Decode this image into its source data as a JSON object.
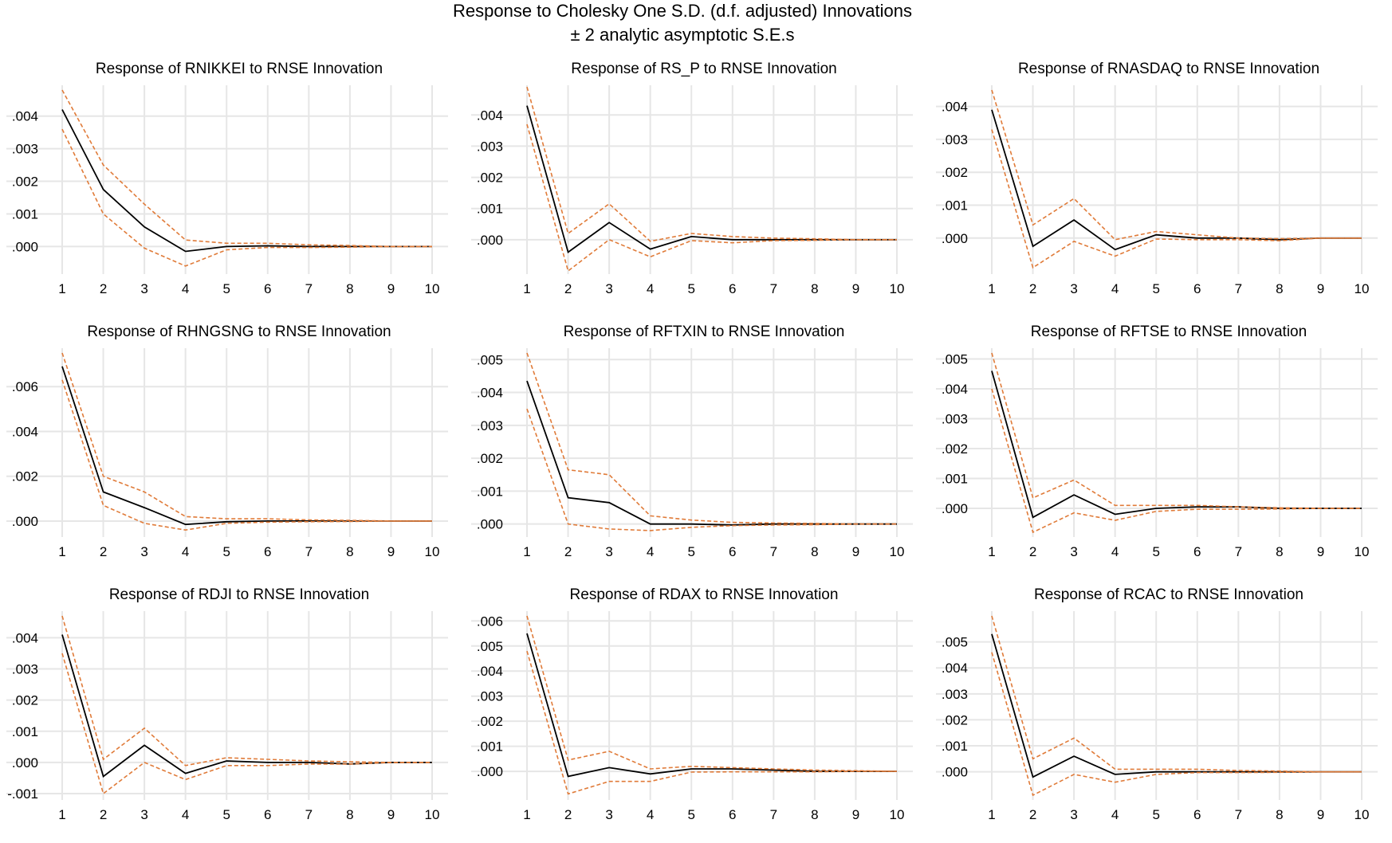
{
  "figure": {
    "title": "Response to Cholesky One S.D. (d.f. adjusted) Innovations",
    "subtitle": "± 2 analytic asymptotic S.E.s"
  },
  "colors": {
    "response": "#000000",
    "bands": "#E07B39",
    "grid": "#e6e6e6"
  },
  "chart_data": [
    {
      "type": "line",
      "title": "Response of RNIKKEI to RNSE Innovation",
      "x": [
        1,
        2,
        3,
        4,
        5,
        6,
        7,
        8,
        9,
        10
      ],
      "xticks": [
        "1",
        "2",
        "3",
        "4",
        "5",
        "6",
        "7",
        "8",
        "9",
        "10"
      ],
      "ylim": [
        -0.0007,
        0.0048
      ],
      "yticks": [
        0.0,
        0.001,
        0.002,
        0.003,
        0.004
      ],
      "ytick_labels": [
        ".000",
        ".001",
        ".002",
        ".003",
        ".004"
      ],
      "grid": true,
      "series": [
        {
          "role": "response",
          "values": [
            0.0042,
            0.00175,
            0.0006,
            -0.00015,
            0.0,
            2e-05,
            0.0,
            0.0,
            0.0,
            0.0
          ]
        },
        {
          "role": "upper",
          "values": [
            0.0048,
            0.0025,
            0.0013,
            0.0002,
            0.0001,
            0.0001,
            5e-05,
            3e-05,
            0.0,
            0.0
          ]
        },
        {
          "role": "lower",
          "values": [
            0.0036,
            0.001,
            -5e-05,
            -0.0006,
            -0.0001,
            -3e-05,
            -3e-05,
            -2e-05,
            0.0,
            0.0
          ]
        }
      ]
    },
    {
      "type": "line",
      "title": "Response of RS_P to RNSE Innovation",
      "x": [
        1,
        2,
        3,
        4,
        5,
        6,
        7,
        8,
        9,
        10
      ],
      "xticks": [
        "1",
        "2",
        "3",
        "4",
        "5",
        "6",
        "7",
        "8",
        "9",
        "10"
      ],
      "ylim": [
        -0.00095,
        0.0048
      ],
      "yticks": [
        0.0,
        0.001,
        0.002,
        0.003,
        0.004
      ],
      "ytick_labels": [
        ".000",
        ".001",
        ".002",
        ".003",
        ".004"
      ],
      "grid": true,
      "series": [
        {
          "role": "response",
          "values": [
            0.0043,
            -0.0004,
            0.00055,
            -0.0003,
            0.0001,
            0.0,
            0.0,
            0.0,
            0.0,
            0.0
          ]
        },
        {
          "role": "upper",
          "values": [
            0.0049,
            0.0002,
            0.00115,
            -5e-05,
            0.0002,
            0.0001,
            5e-05,
            3e-05,
            0.0,
            0.0
          ]
        },
        {
          "role": "lower",
          "values": [
            0.0037,
            -0.001,
            0.0,
            -0.00055,
            -3e-05,
            -0.0001,
            -3e-05,
            -2e-05,
            0.0,
            0.0
          ]
        }
      ]
    },
    {
      "type": "line",
      "title": "Response of RNASDAQ to RNSE Innovation",
      "x": [
        1,
        2,
        3,
        4,
        5,
        6,
        7,
        8,
        9,
        10
      ],
      "xticks": [
        "1",
        "2",
        "3",
        "4",
        "5",
        "6",
        "7",
        "8",
        "9",
        "10"
      ],
      "ylim": [
        -0.00095,
        0.0045
      ],
      "yticks": [
        0.0,
        0.001,
        0.002,
        0.003,
        0.004
      ],
      "ytick_labels": [
        ".000",
        ".001",
        ".002",
        ".003",
        ".004"
      ],
      "grid": true,
      "series": [
        {
          "role": "response",
          "values": [
            0.0039,
            -0.00025,
            0.00055,
            -0.00035,
            0.0001,
            0.0,
            0.0,
            -5e-05,
            0.0,
            0.0
          ]
        },
        {
          "role": "upper",
          "values": [
            0.0045,
            0.0004,
            0.0012,
            -5e-05,
            0.0002,
            0.0001,
            0.0,
            -2e-05,
            0.0,
            0.0
          ]
        },
        {
          "role": "lower",
          "values": [
            0.0033,
            -0.0009,
            -0.0001,
            -0.00055,
            -3e-05,
            -5e-05,
            -5e-05,
            -8e-05,
            0.0,
            0.0
          ]
        }
      ]
    },
    {
      "type": "line",
      "title": "Response of RHNGSNG to RNSE Innovation",
      "x": [
        1,
        2,
        3,
        4,
        5,
        6,
        7,
        8,
        9,
        10
      ],
      "xticks": [
        "1",
        "2",
        "3",
        "4",
        "5",
        "6",
        "7",
        "8",
        "9",
        "10"
      ],
      "ylim": [
        -0.0005,
        0.0075
      ],
      "yticks": [
        0.0,
        0.002,
        0.004,
        0.006
      ],
      "ytick_labels": [
        ".000",
        ".002",
        ".004",
        ".006"
      ],
      "grid": true,
      "series": [
        {
          "role": "response",
          "values": [
            0.0069,
            0.0013,
            0.0006,
            -0.00015,
            -3e-05,
            0.0,
            0.0,
            0.0,
            0.0,
            0.0
          ]
        },
        {
          "role": "upper",
          "values": [
            0.0075,
            0.002,
            0.0013,
            0.0002,
            0.0001,
            0.0001,
            5e-05,
            3e-05,
            0.0,
            0.0
          ]
        },
        {
          "role": "lower",
          "values": [
            0.0063,
            0.0007,
            -0.0001,
            -0.0004,
            -0.0001,
            -5e-05,
            -3e-05,
            -2e-05,
            0.0,
            0.0
          ]
        }
      ]
    },
    {
      "type": "line",
      "title": "Response of RFTXIN to RNSE Innovation",
      "x": [
        1,
        2,
        3,
        4,
        5,
        6,
        7,
        8,
        9,
        10
      ],
      "xticks": [
        "1",
        "2",
        "3",
        "4",
        "5",
        "6",
        "7",
        "8",
        "9",
        "10"
      ],
      "ylim": [
        -0.00025,
        0.0052
      ],
      "yticks": [
        0.0,
        0.001,
        0.002,
        0.003,
        0.004,
        0.005
      ],
      "ytick_labels": [
        ".000",
        ".001",
        ".002",
        ".003",
        ".004",
        ".005"
      ],
      "grid": true,
      "series": [
        {
          "role": "response",
          "values": [
            0.00435,
            0.0008,
            0.00065,
            0.0,
            0.0,
            -3e-05,
            0.0,
            0.0,
            0.0,
            0.0
          ]
        },
        {
          "role": "upper",
          "values": [
            0.0052,
            0.00165,
            0.0015,
            0.00025,
            0.00012,
            5e-05,
            3e-05,
            2e-05,
            0.0,
            0.0
          ]
        },
        {
          "role": "lower",
          "values": [
            0.0035,
            0.0,
            -0.00015,
            -0.0002,
            -0.0001,
            -5e-05,
            -3e-05,
            -2e-05,
            0.0,
            0.0
          ]
        }
      ]
    },
    {
      "type": "line",
      "title": "Response of RFTSE to RNSE Innovation",
      "x": [
        1,
        2,
        3,
        4,
        5,
        6,
        7,
        8,
        9,
        10
      ],
      "xticks": [
        "1",
        "2",
        "3",
        "4",
        "5",
        "6",
        "7",
        "8",
        "9",
        "10"
      ],
      "ylim": [
        -0.0008,
        0.0052
      ],
      "yticks": [
        0.0,
        0.001,
        0.002,
        0.003,
        0.004,
        0.005
      ],
      "ytick_labels": [
        ".000",
        ".001",
        ".002",
        ".003",
        ".004",
        ".005"
      ],
      "grid": true,
      "series": [
        {
          "role": "response",
          "values": [
            0.0046,
            -0.0003,
            0.00045,
            -0.0002,
            0.0,
            5e-05,
            5e-05,
            0.0,
            0.0,
            0.0
          ]
        },
        {
          "role": "upper",
          "values": [
            0.0052,
            0.00035,
            0.00095,
            0.0001,
            0.0001,
            0.0001,
            5e-05,
            2e-05,
            0.0,
            0.0
          ]
        },
        {
          "role": "lower",
          "values": [
            0.004,
            -0.0008,
            -0.00015,
            -0.0004,
            -0.0001,
            -3e-05,
            -3e-05,
            -2e-05,
            0.0,
            0.0
          ]
        }
      ]
    },
    {
      "type": "line",
      "title": "Response of RDJI to RNSE Innovation",
      "x": [
        1,
        2,
        3,
        4,
        5,
        6,
        7,
        8,
        9,
        10
      ],
      "xticks": [
        "1",
        "2",
        "3",
        "4",
        "5",
        "6",
        "7",
        "8",
        "9",
        "10"
      ],
      "ylim": [
        -0.00105,
        0.0047
      ],
      "yticks": [
        -0.001,
        0.0,
        0.001,
        0.002,
        0.003,
        0.004
      ],
      "ytick_labels": [
        "-.001",
        ".000",
        ".001",
        ".002",
        ".003",
        ".004"
      ],
      "grid": true,
      "series": [
        {
          "role": "response",
          "values": [
            0.0041,
            -0.00045,
            0.00055,
            -0.00035,
            5e-05,
            0.0,
            0.0,
            -5e-05,
            0.0,
            0.0
          ]
        },
        {
          "role": "upper",
          "values": [
            0.0047,
            0.0001,
            0.0011,
            -0.0001,
            0.00015,
            0.0001,
            5e-05,
            2e-05,
            0.0,
            0.0
          ]
        },
        {
          "role": "lower",
          "values": [
            0.0035,
            -0.001,
            0.0,
            -0.00055,
            -0.0001,
            -0.0001,
            -5e-05,
            -5e-05,
            0.0,
            0.0
          ]
        }
      ]
    },
    {
      "type": "line",
      "title": "Response of RDAX to RNSE Innovation",
      "x": [
        1,
        2,
        3,
        4,
        5,
        6,
        7,
        8,
        9,
        10
      ],
      "xticks": [
        "1",
        "2",
        "3",
        "4",
        "5",
        "6",
        "7",
        "8",
        "9",
        "10"
      ],
      "ylim": [
        -0.00095,
        0.0062
      ],
      "yticks": [
        0.0,
        0.001,
        0.002,
        0.003,
        0.004,
        0.005,
        0.006
      ],
      "ytick_labels": [
        ".000",
        ".001",
        ".002",
        ".003",
        ".004",
        ".005",
        ".006"
      ],
      "grid": true,
      "series": [
        {
          "role": "response",
          "values": [
            0.0055,
            -0.0002,
            0.00015,
            -0.0001,
            0.0001,
            0.0001,
            5e-05,
            0.0,
            0.0,
            0.0
          ]
        },
        {
          "role": "upper",
          "values": [
            0.0062,
            0.00045,
            0.0008,
            0.0001,
            0.0002,
            0.00015,
            0.0001,
            5e-05,
            3e-05,
            0.0
          ]
        },
        {
          "role": "lower",
          "values": [
            0.0048,
            -0.0009,
            -0.0004,
            -0.0004,
            -3e-05,
            -2e-05,
            -2e-05,
            -2e-05,
            0.0,
            0.0
          ]
        }
      ]
    },
    {
      "type": "line",
      "title": "Response of RCAC to RNSE Innovation",
      "x": [
        1,
        2,
        3,
        4,
        5,
        6,
        7,
        8,
        9,
        10
      ],
      "xticks": [
        "1",
        "2",
        "3",
        "4",
        "5",
        "6",
        "7",
        "8",
        "9",
        "10"
      ],
      "ylim": [
        -0.0009,
        0.006
      ],
      "yticks": [
        0.0,
        0.001,
        0.002,
        0.003,
        0.004,
        0.005
      ],
      "ytick_labels": [
        ".000",
        ".001",
        ".002",
        ".003",
        ".004",
        ".005"
      ],
      "grid": true,
      "series": [
        {
          "role": "response",
          "values": [
            0.0053,
            -0.0002,
            0.0006,
            -0.0001,
            0.0,
            0.0,
            0.0,
            0.0,
            0.0,
            0.0
          ]
        },
        {
          "role": "upper",
          "values": [
            0.006,
            0.0005,
            0.0013,
            0.0001,
            0.0001,
            0.0001,
            5e-05,
            3e-05,
            0.0,
            0.0
          ]
        },
        {
          "role": "lower",
          "values": [
            0.0046,
            -0.0009,
            -0.0001,
            -0.0004,
            -0.0001,
            -3e-05,
            -3e-05,
            -2e-05,
            0.0,
            0.0
          ]
        }
      ]
    }
  ]
}
